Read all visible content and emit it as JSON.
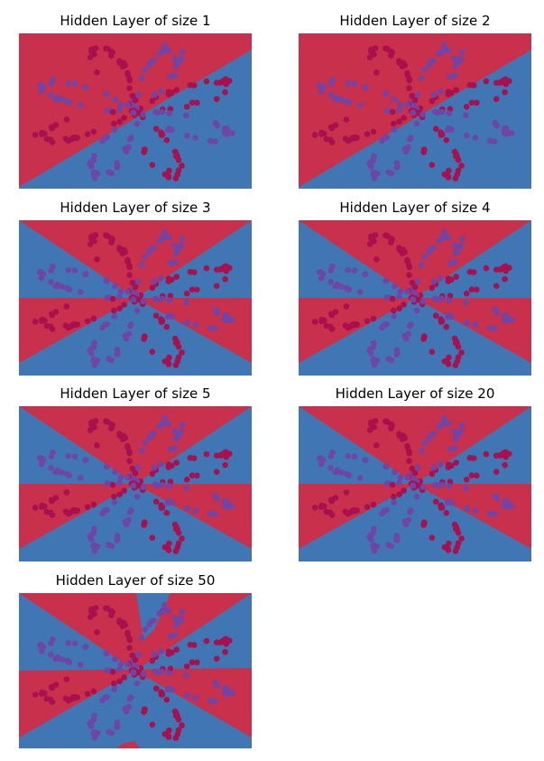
{
  "colors": {
    "region_a": "#C8304C",
    "region_b": "#4076B4",
    "point_a": "#A8104E",
    "point_b": "#7045A6"
  },
  "chart_data": [
    {
      "type": "scatter",
      "title": "Hidden Layer of size 1",
      "xlim": [
        -4.5,
        4.5
      ],
      "ylim": [
        -4.5,
        4.5
      ],
      "axes_visible": false,
      "decision_boundary": "single diagonal line; upper-left red, lower-right blue",
      "dataset": "planar flower, 8 petals, two classes"
    },
    {
      "type": "scatter",
      "title": "Hidden Layer of size 2",
      "xlim": [
        -4.5,
        4.5
      ],
      "ylim": [
        -4.5,
        4.5
      ],
      "axes_visible": false,
      "decision_boundary": "single diagonal line; upper-left red, lower-right blue",
      "dataset": "planar flower, 8 petals, two classes"
    },
    {
      "type": "scatter",
      "title": "Hidden Layer of size 3",
      "xlim": [
        -4.5,
        4.5
      ],
      "ylim": [
        -4.5,
        4.5
      ],
      "axes_visible": false,
      "decision_boundary": "bow-tie wedges; top and center-bottom red, left-right and bottom wedges blue",
      "dataset": "planar flower, 8 petals, two classes"
    },
    {
      "type": "scatter",
      "title": "Hidden Layer of size 4",
      "xlim": [
        -4.5,
        4.5
      ],
      "ylim": [
        -4.5,
        4.5
      ],
      "axes_visible": false,
      "decision_boundary": "bow-tie wedges; top and center-bottom red, left-right and bottom wedges blue",
      "dataset": "planar flower, 8 petals, two classes"
    },
    {
      "type": "scatter",
      "title": "Hidden Layer of size 5",
      "xlim": [
        -4.5,
        4.5
      ],
      "ylim": [
        -4.5,
        4.5
      ],
      "axes_visible": false,
      "decision_boundary": "bow-tie wedges; top and center-bottom red, left-right and bottom wedges blue",
      "dataset": "planar flower, 8 petals, two classes"
    },
    {
      "type": "scatter",
      "title": "Hidden Layer of size 20",
      "xlim": [
        -4.5,
        4.5
      ],
      "ylim": [
        -4.5,
        4.5
      ],
      "axes_visible": false,
      "decision_boundary": "bow-tie wedges; top and center-bottom red, left-right and bottom wedges blue",
      "dataset": "planar flower, 8 petals, two classes"
    },
    {
      "type": "scatter",
      "title": "Hidden Layer of size 50",
      "xlim": [
        -4.5,
        4.5
      ],
      "ylim": [
        -4.5,
        4.5
      ],
      "axes_visible": false,
      "decision_boundary": "bow-tie wedges with irregular top notch and small red bump at bottom",
      "dataset": "planar flower, 8 petals, two classes"
    }
  ]
}
